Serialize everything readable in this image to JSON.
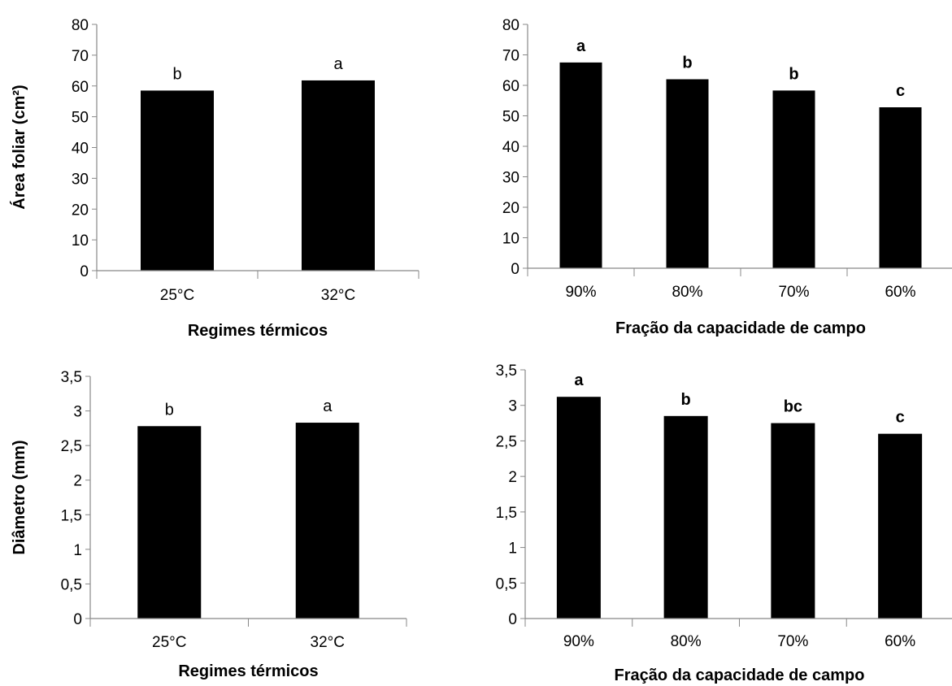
{
  "chart_data": [
    {
      "type": "bar",
      "categories": [
        "25°C",
        "32°C"
      ],
      "values": [
        58.5,
        61.8
      ],
      "significance_letters": [
        "b",
        "a"
      ],
      "xlabel": "Regimes térmicos",
      "ylabel": "Área foliar (cm²)",
      "ylim": [
        0,
        80
      ],
      "yticks": [
        "0",
        "10",
        "20",
        "30",
        "40",
        "50",
        "60",
        "70",
        "80"
      ],
      "bar_color": "#000000",
      "grid": false
    },
    {
      "type": "bar",
      "categories": [
        "90%",
        "80%",
        "70%",
        "60%"
      ],
      "values": [
        67.5,
        62.0,
        58.3,
        52.8
      ],
      "significance_letters": [
        "a",
        "b",
        "b",
        "c"
      ],
      "xlabel": "Fração da capacidade de campo",
      "ylabel": "",
      "ylim": [
        0,
        80
      ],
      "yticks": [
        "0",
        "10",
        "20",
        "30",
        "40",
        "50",
        "60",
        "70",
        "80"
      ],
      "bar_color": "#000000",
      "grid": false
    },
    {
      "type": "bar",
      "categories": [
        "25°C",
        "32°C"
      ],
      "values": [
        2.78,
        2.83
      ],
      "significance_letters": [
        "b",
        "a"
      ],
      "xlabel": "Regimes térmicos",
      "ylabel": "Diâmetro (mm)",
      "ylim": [
        0,
        3.5
      ],
      "yticks": [
        "0",
        "0,5",
        "1",
        "1,5",
        "2",
        "2,5",
        "3",
        "3,5"
      ],
      "bar_color": "#000000",
      "grid": false
    },
    {
      "type": "bar",
      "categories": [
        "90%",
        "80%",
        "70%",
        "60%"
      ],
      "values": [
        3.12,
        2.85,
        2.75,
        2.6
      ],
      "significance_letters": [
        "a",
        "b",
        "bc",
        "c"
      ],
      "xlabel": "Fração da capacidade de campo",
      "ylabel": "",
      "ylim": [
        0,
        3.5
      ],
      "yticks": [
        "0",
        "0,5",
        "1",
        "1,5",
        "2",
        "2,5",
        "3",
        "3,5"
      ],
      "bar_color": "#000000",
      "grid": false
    }
  ]
}
